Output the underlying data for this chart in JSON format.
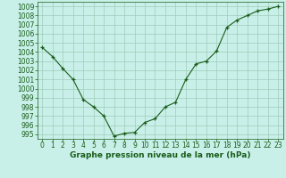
{
  "x": [
    0,
    1,
    2,
    3,
    4,
    5,
    6,
    7,
    8,
    9,
    10,
    11,
    12,
    13,
    14,
    15,
    16,
    17,
    18,
    19,
    20,
    21,
    22,
    23
  ],
  "y": [
    1004.5,
    1003.5,
    1002.2,
    1001.0,
    998.8,
    998.0,
    997.0,
    994.8,
    995.1,
    995.2,
    996.3,
    996.7,
    998.0,
    998.5,
    1001.0,
    1002.7,
    1003.0,
    1004.1,
    1006.7,
    1007.5,
    1008.0,
    1008.5,
    1008.7,
    1009.0
  ],
  "line_color": "#1a5c1a",
  "marker": "+",
  "marker_color": "#1a5c1a",
  "bg_color": "#c8f0e8",
  "grid_color": "#a0ccbb",
  "xlabel": "Graphe pression niveau de la mer (hPa)",
  "xlabel_color": "#1a5c1a",
  "tick_color": "#1a5c1a",
  "ylim": [
    994.5,
    1009.5
  ],
  "xlim": [
    -0.5,
    23.5
  ],
  "yticks": [
    995,
    996,
    997,
    998,
    999,
    1000,
    1001,
    1002,
    1003,
    1004,
    1005,
    1006,
    1007,
    1008,
    1009
  ],
  "xticks": [
    0,
    1,
    2,
    3,
    4,
    5,
    6,
    7,
    8,
    9,
    10,
    11,
    12,
    13,
    14,
    15,
    16,
    17,
    18,
    19,
    20,
    21,
    22,
    23
  ],
  "xlabel_fontsize": 6.5,
  "tick_fontsize": 5.5,
  "linewidth": 0.8,
  "markersize": 3.5
}
